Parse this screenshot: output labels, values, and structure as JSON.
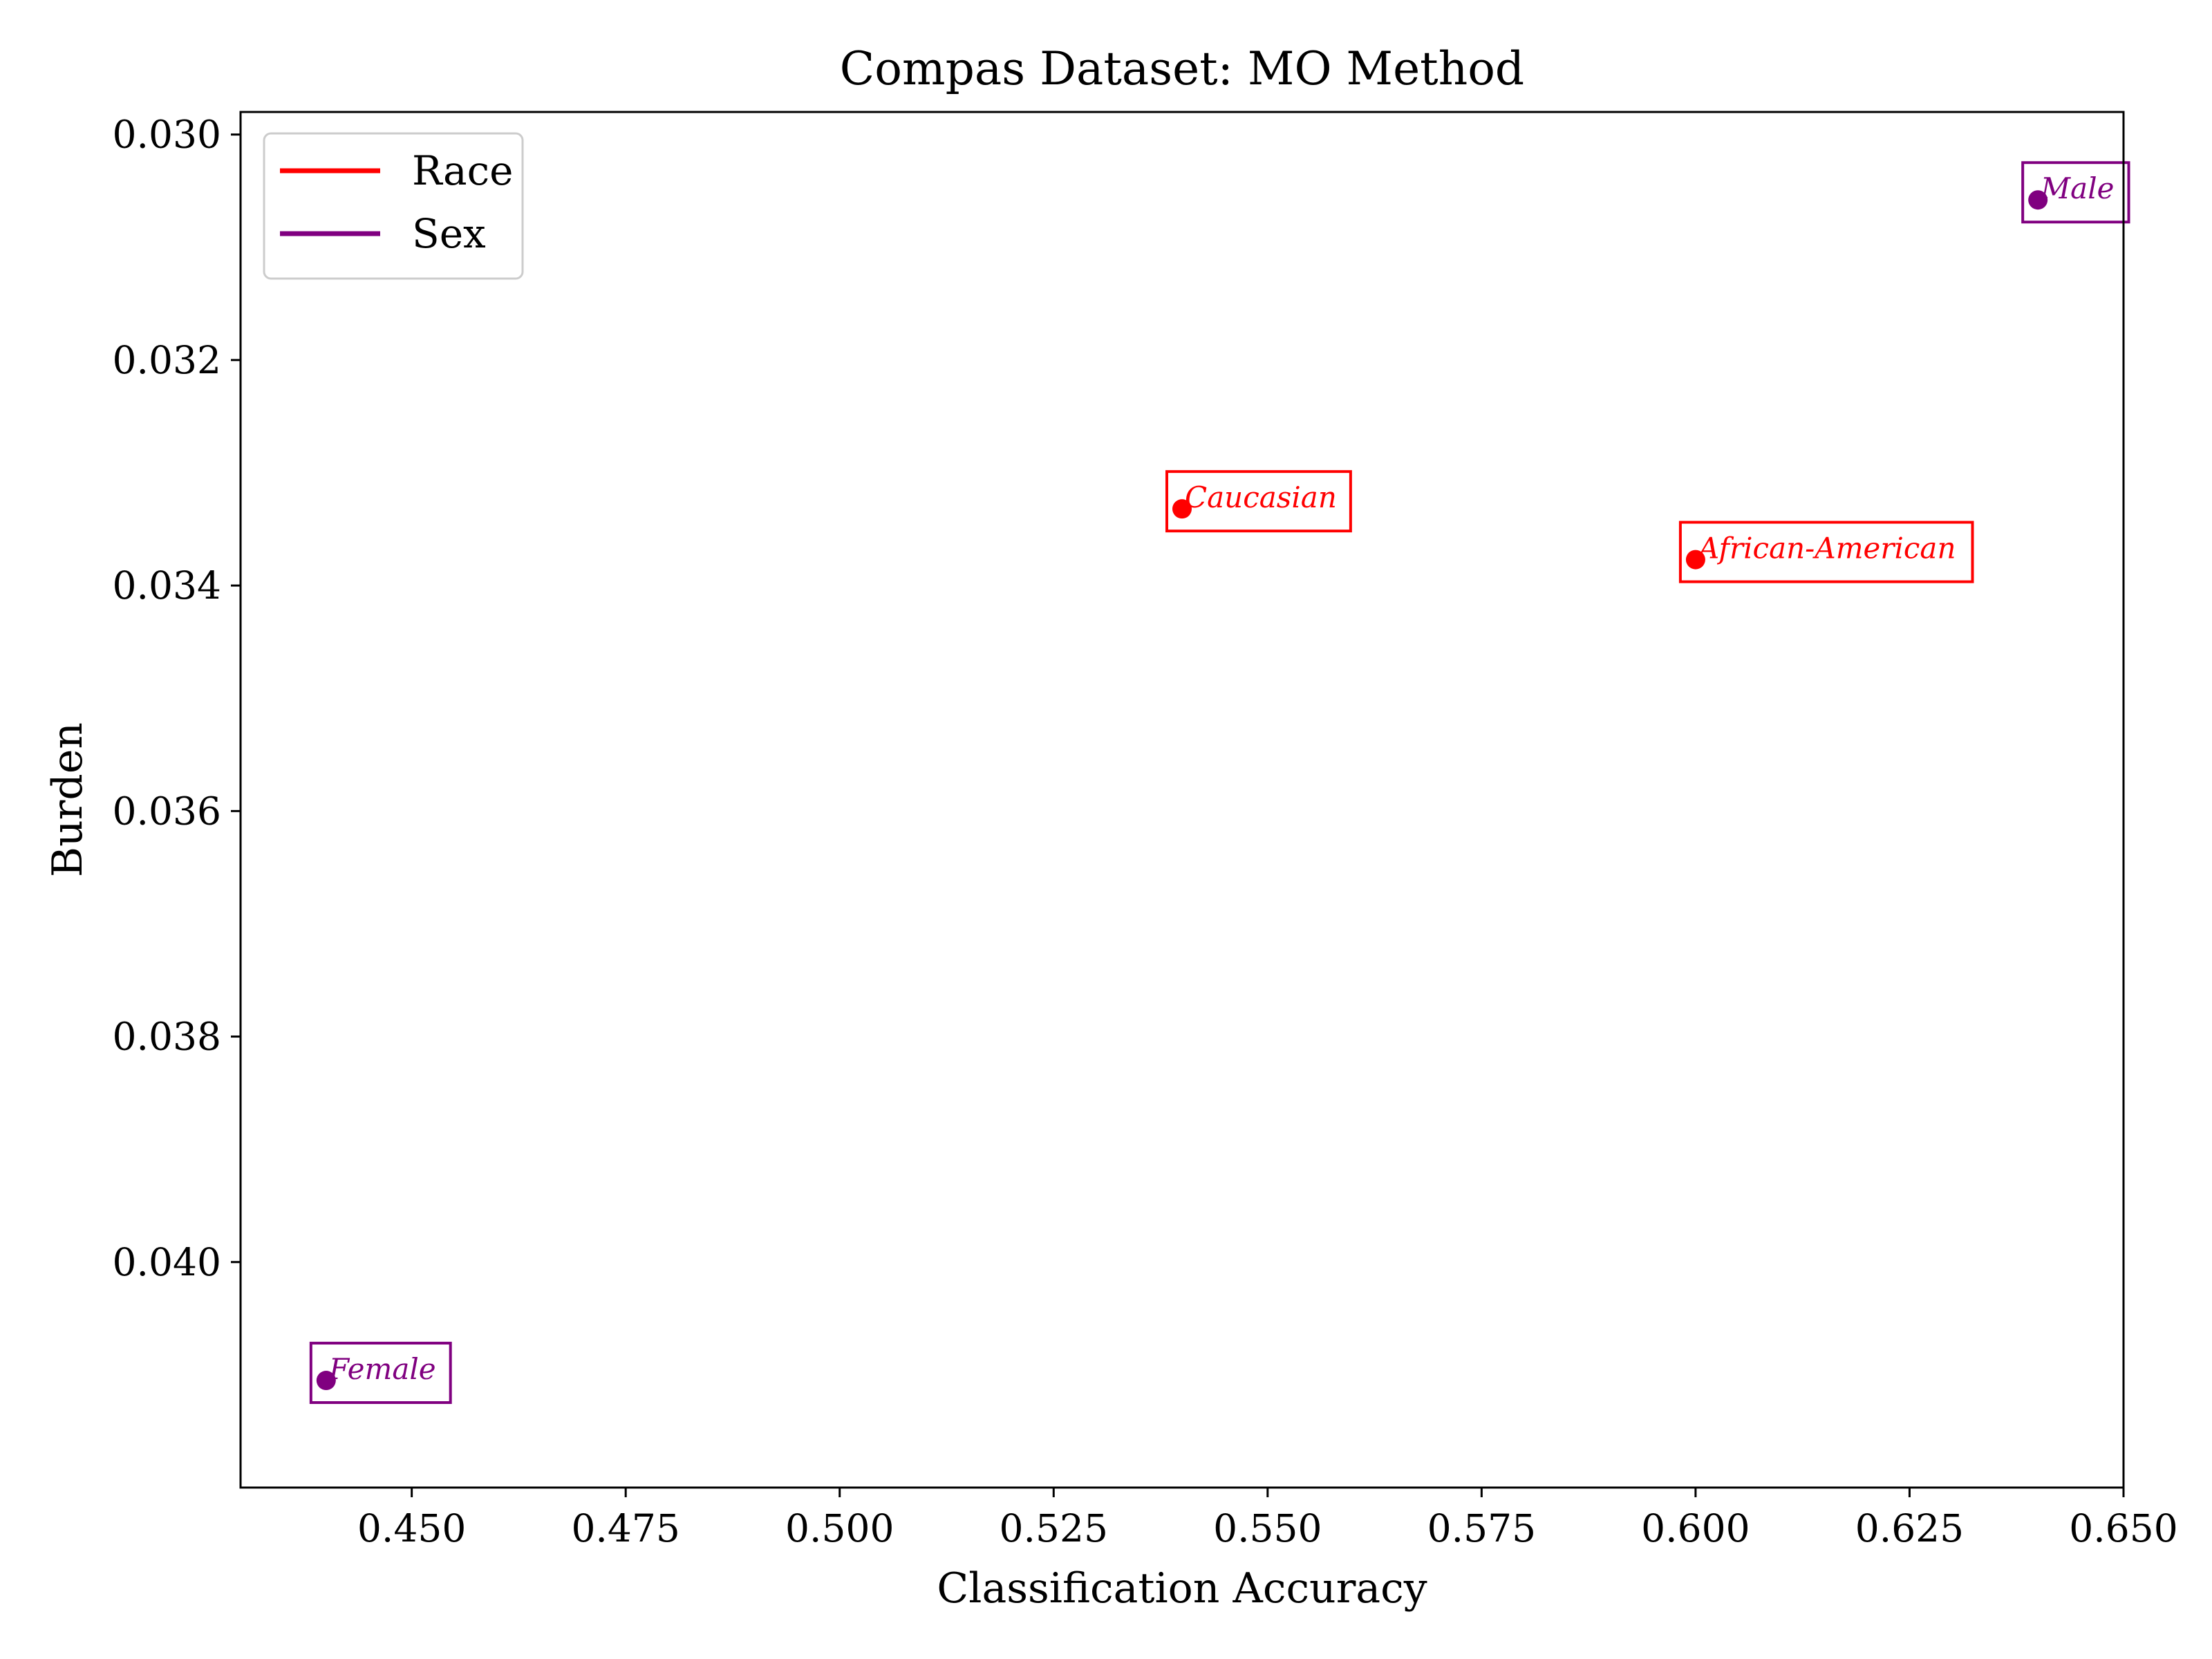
{
  "colors": {
    "race": "#ff0000",
    "sex": "#800080",
    "axes": "#000000",
    "legend_border": "#cccccc"
  },
  "chart_data": {
    "type": "scatter",
    "title": "Compas Dataset: MO Method",
    "xlabel": "Classification Accuracy",
    "ylabel": "Burden",
    "xlim": [
      0.43,
      0.65
    ],
    "ylim": [
      0.042,
      0.0298
    ],
    "y_inverted": true,
    "grid": false,
    "legend_position": "top-left",
    "xticks": [
      "0.450",
      "0.475",
      "0.500",
      "0.525",
      "0.550",
      "0.575",
      "0.600",
      "0.625",
      "0.650"
    ],
    "yticks": [
      "0.030",
      "0.032",
      "0.034",
      "0.036",
      "0.038",
      "0.040"
    ],
    "series": [
      {
        "name": "Race",
        "color": "#ff0000",
        "points": [
          {
            "label": "Caucasian",
            "x": 0.54,
            "y": 0.03332
          },
          {
            "label": "African-American",
            "x": 0.6,
            "y": 0.03377
          }
        ]
      },
      {
        "name": "Sex",
        "color": "#800080",
        "points": [
          {
            "label": "Male",
            "x": 0.64,
            "y": 0.03058
          },
          {
            "label": "Female",
            "x": 0.44,
            "y": 0.04105
          }
        ]
      }
    ]
  }
}
